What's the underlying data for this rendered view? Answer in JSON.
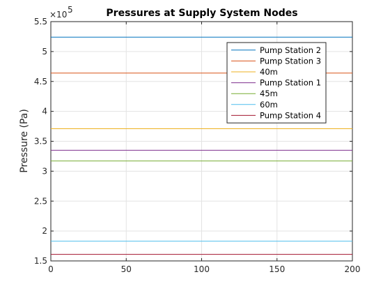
{
  "chart_data": {
    "type": "line",
    "title": "Pressures at Supply System Nodes",
    "xlabel": "",
    "ylabel": "Pressure (Pa)",
    "y_exponent_base": "×10",
    "y_exponent_power": "5",
    "xlim": [
      0,
      200
    ],
    "ylim": [
      1.5,
      5.5
    ],
    "y_scale_multiplier": 100000,
    "x_ticks": [
      0,
      50,
      100,
      150,
      200
    ],
    "x_tick_labels": [
      "0",
      "50",
      "100",
      "150",
      "200"
    ],
    "y_ticks": [
      1.5,
      2,
      2.5,
      3,
      3.5,
      4,
      4.5,
      5,
      5.5
    ],
    "y_tick_labels": [
      "1.5",
      "2",
      "2.5",
      "3",
      "3.5",
      "4",
      "4.5",
      "5",
      "5.5"
    ],
    "grid": true,
    "legend_position": "top-right",
    "x": [
      0,
      200
    ],
    "series": [
      {
        "name": "Pump Station 2",
        "values": [
          5.24,
          5.24
        ],
        "color": "#0072BD"
      },
      {
        "name": "Pump Station 3",
        "values": [
          4.64,
          4.64
        ],
        "color": "#D95319"
      },
      {
        "name": "40m",
        "values": [
          3.71,
          3.71
        ],
        "color": "#EDB120"
      },
      {
        "name": "Pump Station 1",
        "values": [
          3.35,
          3.35
        ],
        "color": "#7E2F8E"
      },
      {
        "name": "45m",
        "values": [
          3.17,
          3.17
        ],
        "color": "#77AC30"
      },
      {
        "name": "60m",
        "values": [
          1.83,
          1.83
        ],
        "color": "#4DBEEE"
      },
      {
        "name": "Pump Station 4",
        "values": [
          1.61,
          1.61
        ],
        "color": "#A2142F"
      }
    ]
  }
}
